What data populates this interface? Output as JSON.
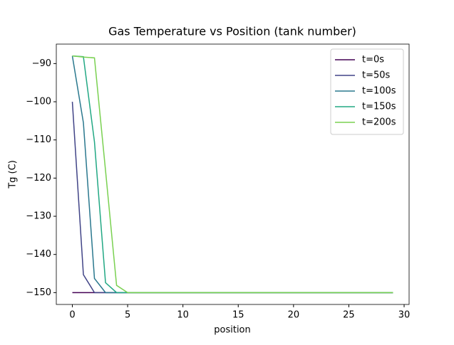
{
  "chart_data": {
    "type": "line",
    "title": "Gas Temperature vs Position (tank number)",
    "xlabel": "position",
    "ylabel": "Tg (C)",
    "x": [
      0,
      1,
      2,
      3,
      4,
      5,
      6,
      7,
      8,
      9,
      10,
      11,
      12,
      13,
      14,
      15,
      16,
      17,
      18,
      19,
      20,
      21,
      22,
      23,
      24,
      25,
      26,
      27,
      28,
      29
    ],
    "series": [
      {
        "name": "t=0s",
        "color": "#440154",
        "values": [
          -150,
          -150,
          -150,
          -150,
          -150,
          -150,
          -150,
          -150,
          -150,
          -150,
          -150,
          -150,
          -150,
          -150,
          -150,
          -150,
          -150,
          -150,
          -150,
          -150,
          -150,
          -150,
          -150,
          -150,
          -150,
          -150,
          -150,
          -150,
          -150,
          -150
        ]
      },
      {
        "name": "t=50s",
        "color": "#414487",
        "values": [
          -100,
          -145.3,
          -150,
          -150,
          -150,
          -150,
          -150,
          -150,
          -150,
          -150,
          -150,
          -150,
          -150,
          -150,
          -150,
          -150,
          -150,
          -150,
          -150,
          -150,
          -150,
          -150,
          -150,
          -150,
          -150,
          -150,
          -150,
          -150,
          -150,
          -150
        ]
      },
      {
        "name": "t=100s",
        "color": "#2a788e",
        "values": [
          -88,
          -105.5,
          -146.3,
          -150,
          -150,
          -150,
          -150,
          -150,
          -150,
          -150,
          -150,
          -150,
          -150,
          -150,
          -150,
          -150,
          -150,
          -150,
          -150,
          -150,
          -150,
          -150,
          -150,
          -150,
          -150,
          -150,
          -150,
          -150,
          -150,
          -150
        ]
      },
      {
        "name": "t=150s",
        "color": "#22a884",
        "values": [
          -88,
          -88.2,
          -110.5,
          -147.4,
          -150,
          -150,
          -150,
          -150,
          -150,
          -150,
          -150,
          -150,
          -150,
          -150,
          -150,
          -150,
          -150,
          -150,
          -150,
          -150,
          -150,
          -150,
          -150,
          -150,
          -150,
          -150,
          -150,
          -150,
          -150,
          -150
        ]
      },
      {
        "name": "t=200s",
        "color": "#7ad151",
        "values": [
          -88,
          -88.3,
          -88.5,
          -118,
          -148.1,
          -150,
          -150,
          -150,
          -150,
          -150,
          -150,
          -150,
          -150,
          -150,
          -150,
          -150,
          -150,
          -150,
          -150,
          -150,
          -150,
          -150,
          -150,
          -150,
          -150,
          -150,
          -150,
          -150,
          -150,
          -150
        ]
      }
    ],
    "xlim": [
      -1.45,
      30.45
    ],
    "xticks": [
      0,
      5,
      10,
      15,
      20,
      25,
      30
    ],
    "ylim": [
      -153.1,
      -84.9
    ],
    "yticks": [
      {
        "value": -150,
        "label": "−150"
      },
      {
        "value": -140,
        "label": "−140"
      },
      {
        "value": -130,
        "label": "−130"
      },
      {
        "value": -120,
        "label": "−120"
      },
      {
        "value": -110,
        "label": "−110"
      },
      {
        "value": -100,
        "label": "−100"
      },
      {
        "value": -90,
        "label": "−90"
      }
    ],
    "legend": "upper-right"
  }
}
